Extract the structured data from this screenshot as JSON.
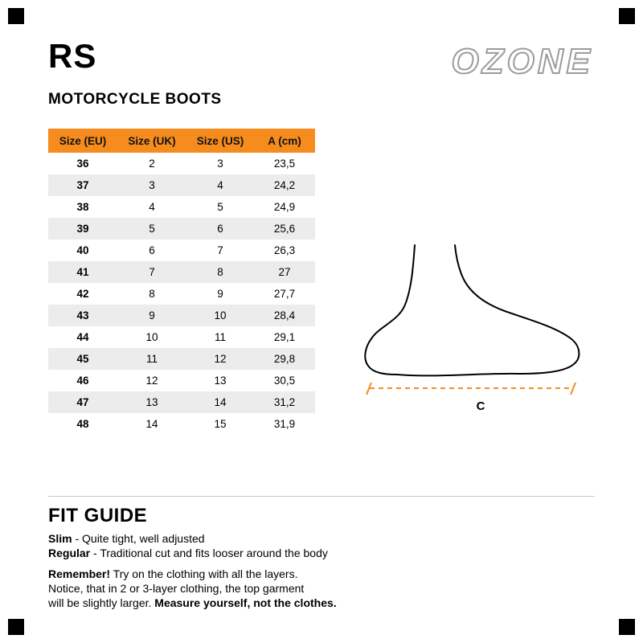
{
  "header": {
    "title": "RS",
    "subtitle": "MOTORCYCLE BOOTS",
    "brand": "OZONE"
  },
  "size_table": {
    "columns": [
      "Size (EU)",
      "Size (UK)",
      "Size (US)",
      "A (cm)"
    ],
    "rows": [
      [
        "36",
        "2",
        "3",
        "23,5"
      ],
      [
        "37",
        "3",
        "4",
        "24,2"
      ],
      [
        "38",
        "4",
        "5",
        "24,9"
      ],
      [
        "39",
        "5",
        "6",
        "25,6"
      ],
      [
        "40",
        "6",
        "7",
        "26,3"
      ],
      [
        "41",
        "7",
        "8",
        "27"
      ],
      [
        "42",
        "8",
        "9",
        "27,7"
      ],
      [
        "43",
        "9",
        "10",
        "28,4"
      ],
      [
        "44",
        "10",
        "11",
        "29,1"
      ],
      [
        "45",
        "11",
        "12",
        "29,8"
      ],
      [
        "46",
        "12",
        "13",
        "30,5"
      ],
      [
        "47",
        "13",
        "14",
        "31,2"
      ],
      [
        "48",
        "14",
        "15",
        "31,9"
      ]
    ],
    "header_bg_color": "#F68C1E",
    "stripe_color": "#ECECEC"
  },
  "foot_diagram": {
    "measure_label": "C",
    "dash_color": "#F68C1E"
  },
  "fit_guide": {
    "title": "FIT GUIDE",
    "slim_bold": "Slim",
    "slim_rest": " - Quite tight, well adjusted",
    "regular_bold": "Regular",
    "regular_rest": " -  Traditional cut and fits looser around the body",
    "remember_bold": "Remember!",
    "remember_rest": " Try on the clothing with all the layers.",
    "notice_line": "Notice, that in 2 or 3-layer clothing, the top garment",
    "final_prefix": "will be slightly larger. ",
    "final_bold": "Measure yourself, not the clothes."
  }
}
